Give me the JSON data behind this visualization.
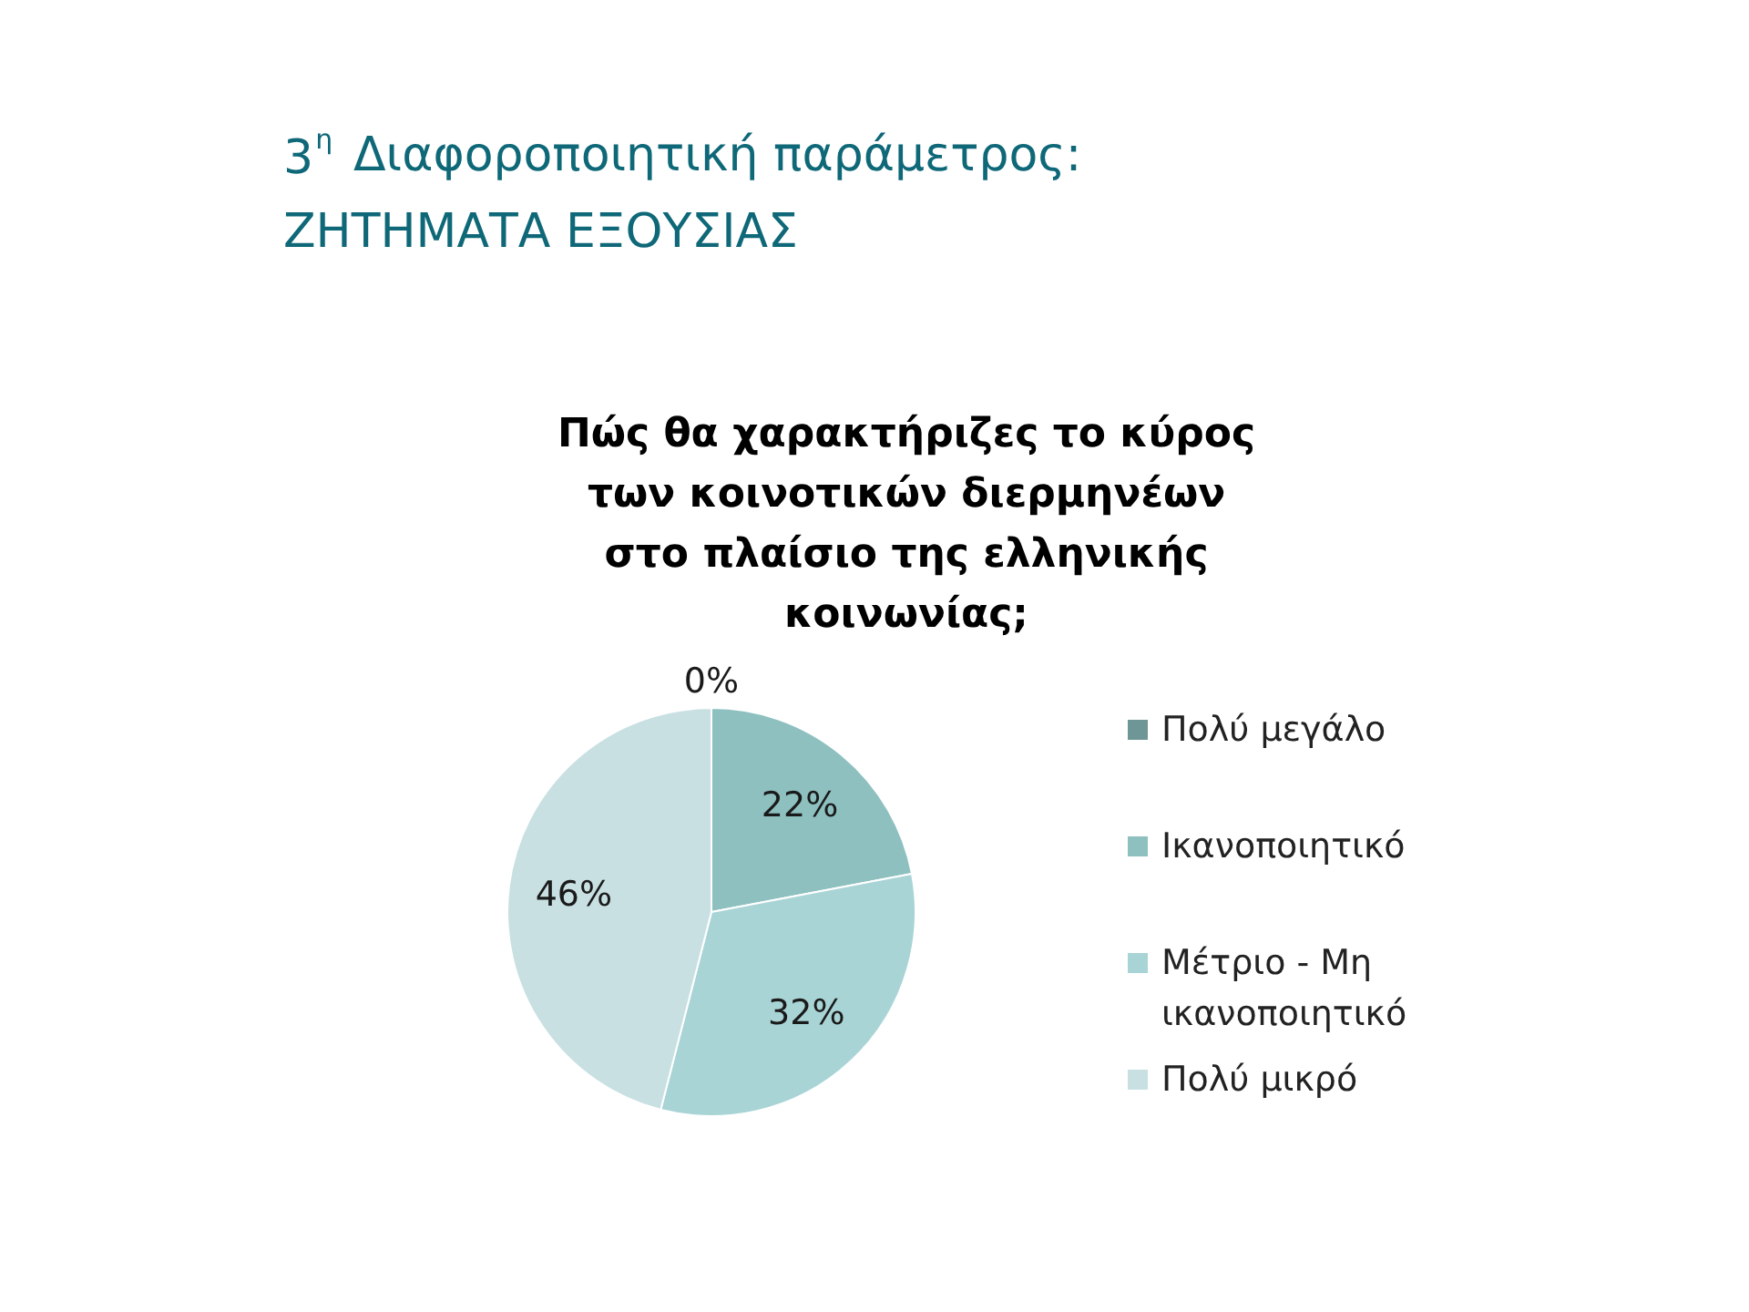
{
  "chart_data": {
    "type": "pie",
    "title": "Πώς θα χαρακτήριζες το κύρος των κοινοτικών διερμηνέων στο πλαίσιο της ελληνικής κοινωνίας;",
    "annotations": [
      "3$^{η}$ Διαφοροποιητική παράμετρος:",
      "ΖΗΤΗΜΑΤΑ ΕΞΟΥΣΙΑΣ"
    ],
    "categories": [
      "Πολύ μεγάλο",
      "Ικανοποιητικό",
      "Μέτριο - Μη ικανοποιητικό",
      "Πολύ μικρό"
    ],
    "values": [
      0,
      22,
      32,
      46
    ],
    "value_labels": [
      "0%",
      "22%",
      "32%",
      "46%"
    ],
    "colors": [
      "#6e9696",
      "#8ec0c0",
      "#a9d4d6",
      "#c9e0e3"
    ],
    "legend": "right"
  }
}
